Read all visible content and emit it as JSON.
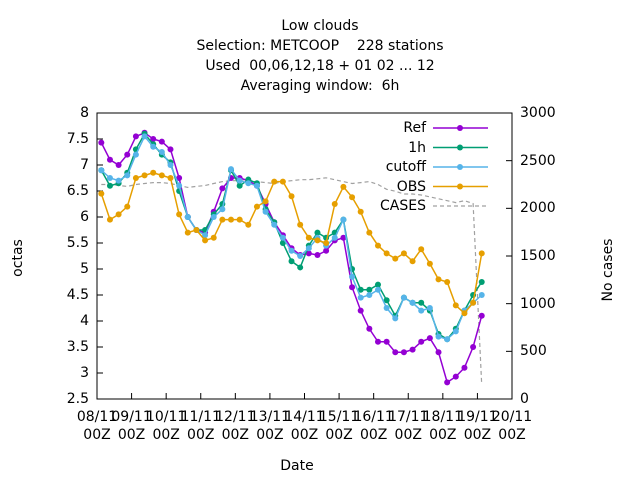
{
  "chart_data": {
    "type": "line",
    "title": "Low clouds",
    "subtitle": [
      "Selection: METCOOP    228 stations",
      "Used  00,06,12,18 + 01 02 ... 12",
      "Averaging window:  6h"
    ],
    "xlabel": "Date",
    "ylabel": "octas",
    "y2label": "No cases",
    "xlim": [
      "08/11 00Z",
      "20/11 00Z"
    ],
    "xticks": [
      "08/11\n00Z",
      "09/11\n00Z",
      "10/11\n00Z",
      "11/11\n00Z",
      "12/11\n00Z",
      "13/11\n00Z",
      "14/11\n00Z",
      "15/11\n00Z",
      "16/11\n00Z",
      "17/11\n00Z",
      "18/11\n00Z",
      "19/11\n00Z",
      "20/11\n00Z"
    ],
    "ylim": [
      2.5,
      8
    ],
    "yticks": [
      2.5,
      3,
      3.5,
      4,
      4.5,
      5,
      5.5,
      6,
      6.5,
      7,
      7.5,
      8
    ],
    "y2lim": [
      0,
      3000
    ],
    "y2ticks": [
      0,
      500,
      1000,
      1500,
      2000,
      2500,
      3000
    ],
    "legend": "upper right",
    "x": [
      "08/11 03Z",
      "08/11 09Z",
      "08/11 15Z",
      "08/11 21Z",
      "09/11 03Z",
      "09/11 09Z",
      "09/11 15Z",
      "09/11 21Z",
      "10/11 03Z",
      "10/11 09Z",
      "10/11 15Z",
      "10/11 21Z",
      "11/11 03Z",
      "11/11 09Z",
      "11/11 15Z",
      "11/11 21Z",
      "12/11 03Z",
      "12/11 09Z",
      "12/11 15Z",
      "12/11 21Z",
      "13/11 03Z",
      "13/11 09Z",
      "13/11 15Z",
      "13/11 21Z",
      "14/11 03Z",
      "14/11 09Z",
      "14/11 15Z",
      "14/11 21Z",
      "15/11 03Z",
      "15/11 09Z",
      "15/11 15Z",
      "15/11 21Z",
      "16/11 03Z",
      "16/11 09Z",
      "16/11 15Z",
      "16/11 21Z",
      "17/11 03Z",
      "17/11 09Z",
      "17/11 15Z",
      "17/11 21Z",
      "18/11 03Z",
      "18/11 09Z",
      "18/11 15Z",
      "18/11 21Z",
      "19/11 03Z"
    ],
    "series": [
      {
        "name": "Ref",
        "color": "#9400d3",
        "values": [
          7.43,
          7.1,
          7.0,
          7.2,
          7.55,
          7.62,
          7.5,
          7.45,
          7.3,
          6.75,
          6.0,
          5.75,
          5.7,
          6.1,
          6.55,
          6.75,
          6.75,
          6.7,
          6.6,
          6.25,
          5.9,
          5.65,
          5.4,
          5.27,
          5.3,
          5.27,
          5.35,
          5.55,
          5.6,
          4.65,
          4.2,
          3.85,
          3.6,
          3.6,
          3.4,
          3.4,
          3.45,
          3.6,
          3.67,
          3.4,
          2.82,
          2.93,
          3.1,
          3.5,
          4.1
        ]
      },
      {
        "name": "1h",
        "color": "#009e73",
        "values": [
          6.9,
          6.6,
          6.65,
          6.85,
          7.3,
          7.6,
          7.4,
          7.2,
          7.05,
          6.5,
          6.0,
          5.75,
          5.75,
          6.05,
          6.25,
          6.9,
          6.6,
          6.72,
          6.65,
          6.15,
          5.9,
          5.5,
          5.15,
          5.03,
          5.45,
          5.7,
          5.6,
          5.7,
          5.95,
          5.0,
          4.6,
          4.6,
          4.7,
          4.4,
          4.1,
          4.45,
          4.35,
          4.35,
          4.2,
          3.75,
          3.65,
          3.85,
          4.2,
          4.5,
          4.75
        ]
      },
      {
        "name": "cutoff",
        "color": "#56b4e9",
        "values": [
          6.9,
          6.75,
          6.7,
          6.8,
          7.2,
          7.55,
          7.35,
          7.25,
          7.0,
          6.6,
          6.0,
          5.75,
          5.65,
          6.0,
          6.15,
          6.92,
          6.7,
          6.65,
          6.6,
          6.1,
          5.85,
          5.6,
          5.35,
          5.25,
          5.4,
          5.6,
          5.45,
          5.6,
          5.95,
          4.85,
          4.45,
          4.5,
          4.6,
          4.25,
          4.05,
          4.45,
          4.35,
          4.2,
          4.25,
          3.7,
          3.65,
          3.8,
          4.2,
          4.35,
          4.5
        ]
      },
      {
        "name": "OBS",
        "color": "#e69f00",
        "values": [
          6.45,
          5.95,
          6.05,
          6.2,
          6.75,
          6.8,
          6.85,
          6.8,
          6.75,
          6.05,
          5.7,
          5.75,
          5.55,
          5.6,
          5.95,
          5.95,
          5.95,
          5.85,
          6.2,
          6.3,
          6.68,
          6.68,
          6.4,
          5.85,
          5.6,
          5.55,
          5.5,
          6.25,
          6.58,
          6.38,
          6.1,
          5.7,
          5.45,
          5.3,
          5.2,
          5.3,
          5.15,
          5.38,
          5.1,
          4.8,
          4.75,
          4.3,
          4.15,
          4.35,
          5.3
        ]
      },
      {
        "name": "CASES",
        "color": "#a0a0a0",
        "dashed": true,
        "axis": "y2",
        "values": [
          2250,
          2250,
          2240,
          2230,
          2250,
          2260,
          2270,
          2270,
          2260,
          2240,
          2220,
          2230,
          2240,
          2260,
          2280,
          2290,
          2290,
          2280,
          2280,
          2270,
          2260,
          2280,
          2290,
          2300,
          2300,
          2310,
          2320,
          2300,
          2280,
          2260,
          2270,
          2280,
          2250,
          2200,
          2180,
          2150,
          2150,
          2140,
          2120,
          2100,
          2080,
          2060,
          2080,
          2050,
          150
        ]
      }
    ]
  }
}
